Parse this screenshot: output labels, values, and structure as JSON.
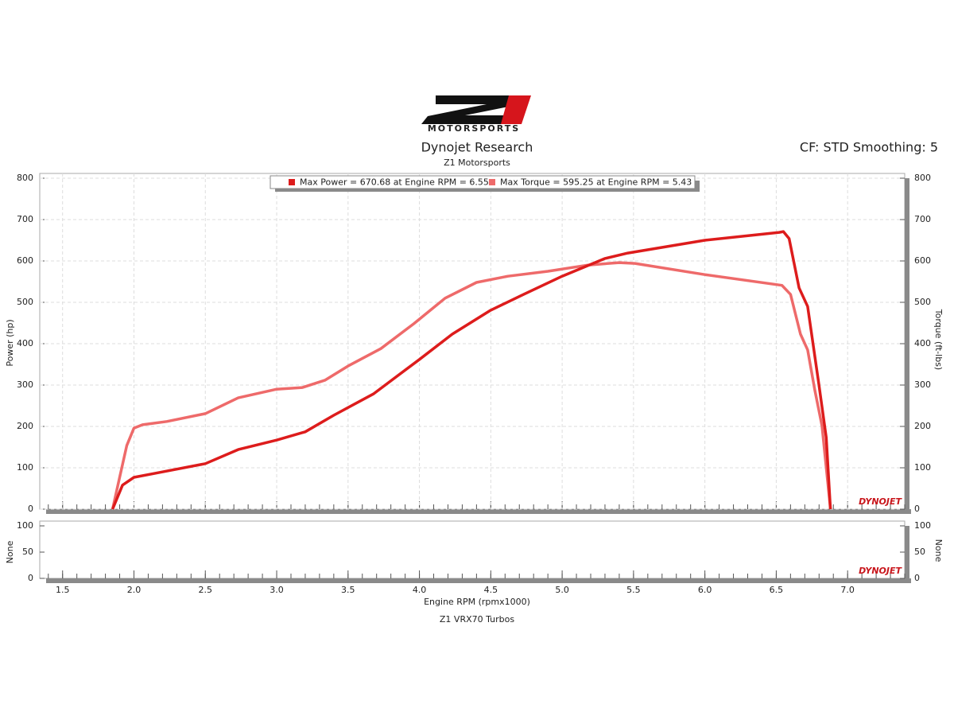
{
  "chart_data": {
    "type": "line",
    "logo_text": "MOTORSPORTS",
    "title": "Dynojet Research",
    "subtitle": "Z1 Motorsports",
    "note": "CF: STD Smoothing: 5",
    "brand": "DYNOJET",
    "xlabel": "Engine RPM (rpmx1000)",
    "ylabel": "Power (hp)",
    "y2label": "Torque (ft-lbs)",
    "footer": "Z1 VRX70 Turbos",
    "grid": true,
    "xlim": [
      1.34,
      7.4
    ],
    "xticks": [
      1.5,
      {
        "value": 2,
        "label": "2.0"
      },
      2.5,
      {
        "value": 3,
        "label": "3.0"
      },
      3.5,
      {
        "value": 4,
        "label": "4.0"
      },
      4.5,
      {
        "value": 5,
        "label": "5.0"
      },
      5.5,
      {
        "value": 6,
        "label": "6.0"
      },
      6.5,
      {
        "value": 7,
        "label": "7.0"
      }
    ],
    "ylim": [
      0,
      800
    ],
    "yticks": [
      0,
      100,
      200,
      300,
      400,
      500,
      600,
      700,
      800
    ],
    "y2lim": [
      0,
      800
    ],
    "y2ticks": [
      0,
      100,
      200,
      300,
      400,
      500,
      600,
      700,
      800
    ],
    "series": [
      {
        "name": "Max Power = 670.68 at Engine RPM = 6.55",
        "color": "#dd1c1c",
        "x": [
          1.85,
          1.92,
          2.0,
          2.17,
          2.5,
          2.73,
          3.0,
          3.2,
          3.4,
          3.68,
          4.0,
          4.23,
          4.5,
          4.73,
          5.0,
          5.3,
          5.46,
          6.0,
          6.52,
          6.55,
          6.59,
          6.66,
          6.72,
          6.8,
          6.85,
          6.88
        ],
        "values": [
          0,
          58,
          77,
          88,
          110,
          144,
          167,
          187,
          227,
          279,
          362,
          423,
          481,
          519,
          563,
          606,
          619,
          650,
          669,
          671,
          654,
          535,
          490,
          298,
          173,
          0
        ]
      },
      {
        "name": "Max Torque = 595.25 at Engine RPM = 5.43",
        "color": "#ee6a6a",
        "axis": "y2",
        "x": [
          1.85,
          1.9,
          1.95,
          2.0,
          2.06,
          2.23,
          2.5,
          2.73,
          3.0,
          3.18,
          3.34,
          3.5,
          3.73,
          3.96,
          4.18,
          4.4,
          4.62,
          4.9,
          5.18,
          5.4,
          5.51,
          6.0,
          6.54,
          6.6,
          6.67,
          6.72,
          6.77,
          6.82,
          6.88
        ],
        "values": [
          0,
          77,
          154,
          196,
          204,
          212,
          231,
          269,
          290,
          294,
          312,
          346,
          388,
          448,
          510,
          548,
          563,
          575,
          590,
          596,
          594,
          567,
          541,
          519,
          423,
          385,
          288,
          202,
          0
        ]
      }
    ],
    "lower_panel": {
      "ylabel": "None",
      "y2label": "None",
      "ylim": [
        0,
        100
      ],
      "yticks": [
        0,
        50,
        100
      ]
    }
  }
}
